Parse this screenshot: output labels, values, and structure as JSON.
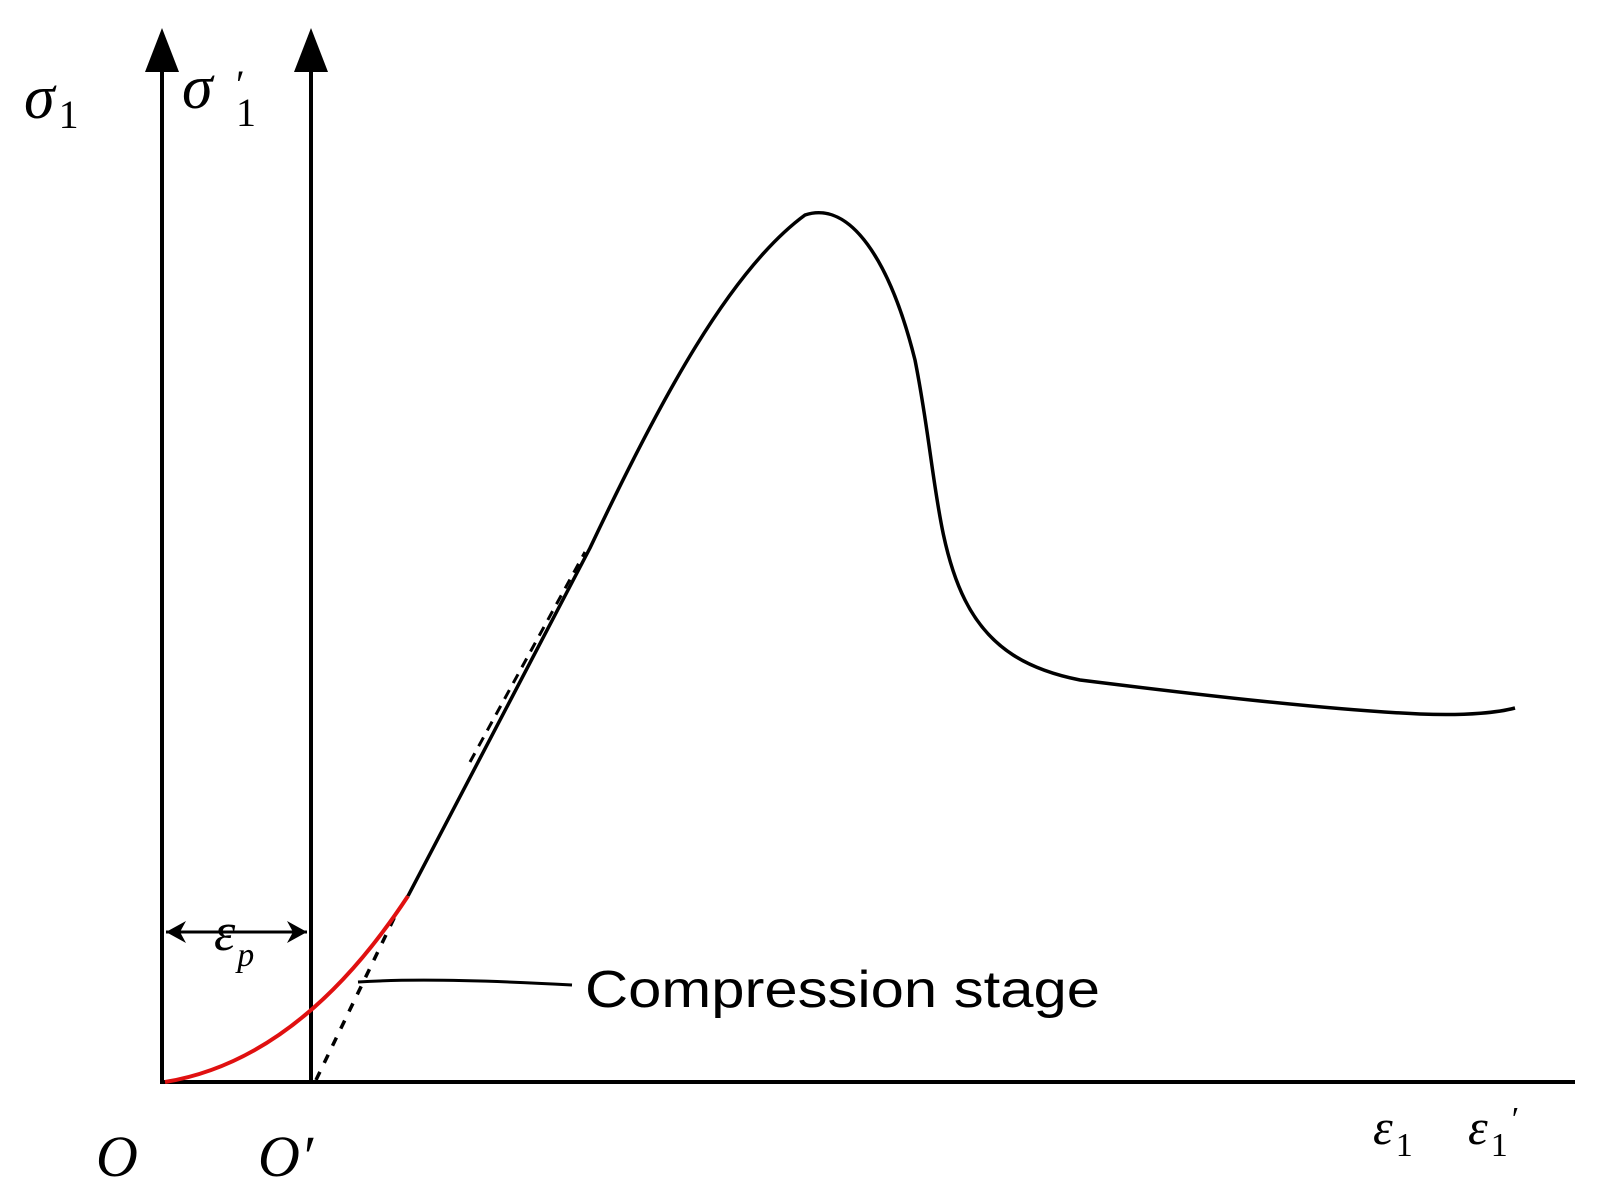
{
  "labels": {
    "sigma1": "σ",
    "sigma1_sub": "1",
    "sigma1_prime": "σ",
    "sigma1_prime_sub": "1",
    "sigma1_prime_mark": "′",
    "origin": "O",
    "origin_prime": "O",
    "origin_prime_mark": "′",
    "eps1": "ε",
    "eps1_sub": "1",
    "eps1_prime": "ε",
    "eps1_prime_sub": "1",
    "eps1_prime_mark": "′",
    "eps_p": "ε",
    "eps_p_sub": "p",
    "annotation": "Compression stage"
  },
  "colors": {
    "line": "#000000",
    "compression_curve": "#e01010"
  }
}
